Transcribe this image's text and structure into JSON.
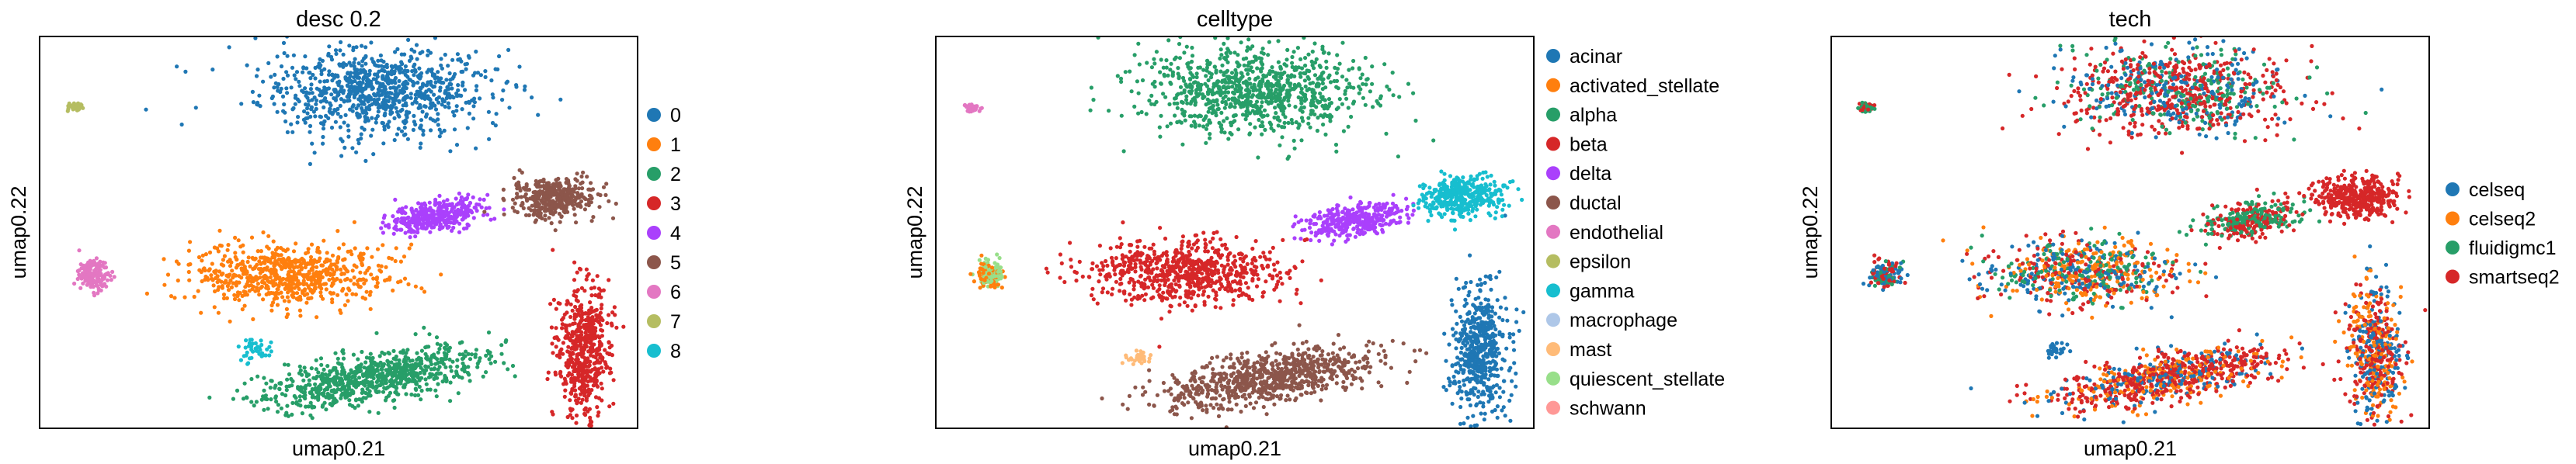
{
  "chart_data": [
    {
      "type": "scatter",
      "title": "desc 0.2",
      "xlabel": "umap0.21",
      "ylabel": "umap0.22",
      "grid": false,
      "legend_position": "right",
      "legend": [
        {
          "label": "0",
          "color": "#1f77b4"
        },
        {
          "label": "1",
          "color": "#ff7f0e"
        },
        {
          "label": "2",
          "color": "#279e68"
        },
        {
          "label": "3",
          "color": "#d62728"
        },
        {
          "label": "4",
          "color": "#aa40fc"
        },
        {
          "label": "5",
          "color": "#8c564b"
        },
        {
          "label": "6",
          "color": "#e377c2"
        },
        {
          "label": "7",
          "color": "#b5bd61"
        },
        {
          "label": "8",
          "color": "#17becf"
        }
      ],
      "clusters": [
        {
          "x": 0.56,
          "y": 0.86,
          "sx": 0.095,
          "sy": 0.055,
          "n": 900,
          "colors": [
            "#1f77b4"
          ]
        },
        {
          "x": 0.42,
          "y": 0.39,
          "sx": 0.08,
          "sy": 0.04,
          "n": 700,
          "colors": [
            "#ff7f0e"
          ]
        },
        {
          "x": 0.56,
          "y": 0.13,
          "sx": 0.095,
          "sy": 0.03,
          "n": 800,
          "colors": [
            "#279e68"
          ],
          "rot": 0.28
        },
        {
          "x": 0.91,
          "y": 0.2,
          "sx": 0.022,
          "sy": 0.08,
          "n": 550,
          "colors": [
            "#d62728"
          ]
        },
        {
          "x": 0.66,
          "y": 0.54,
          "sx": 0.04,
          "sy": 0.02,
          "n": 350,
          "colors": [
            "#aa40fc"
          ],
          "rot": 0.3
        },
        {
          "x": 0.86,
          "y": 0.59,
          "sx": 0.035,
          "sy": 0.025,
          "n": 400,
          "colors": [
            "#8c564b"
          ]
        },
        {
          "x": 0.09,
          "y": 0.39,
          "sx": 0.012,
          "sy": 0.018,
          "n": 160,
          "colors": [
            "#e377c2"
          ]
        },
        {
          "x": 0.06,
          "y": 0.82,
          "sx": 0.006,
          "sy": 0.006,
          "n": 45,
          "colors": [
            "#b5bd61"
          ]
        },
        {
          "x": 0.36,
          "y": 0.2,
          "sx": 0.014,
          "sy": 0.014,
          "n": 40,
          "colors": [
            "#17becf"
          ]
        }
      ]
    },
    {
      "type": "scatter",
      "title": "celltype",
      "xlabel": "umap0.21",
      "ylabel": "umap0.22",
      "grid": false,
      "legend_position": "right",
      "legend": [
        {
          "label": "acinar",
          "color": "#1f77b4"
        },
        {
          "label": "activated_stellate",
          "color": "#ff7f0e"
        },
        {
          "label": "alpha",
          "color": "#279e68"
        },
        {
          "label": "beta",
          "color": "#d62728"
        },
        {
          "label": "delta",
          "color": "#aa40fc"
        },
        {
          "label": "ductal",
          "color": "#8c564b"
        },
        {
          "label": "endothelial",
          "color": "#e377c2"
        },
        {
          "label": "epsilon",
          "color": "#b5bd61"
        },
        {
          "label": "gamma",
          "color": "#17becf"
        },
        {
          "label": "macrophage",
          "color": "#aec7e8"
        },
        {
          "label": "mast",
          "color": "#ffbb78"
        },
        {
          "label": "quiescent_stellate",
          "color": "#98df8a"
        },
        {
          "label": "schwann",
          "color": "#ff9896"
        }
      ],
      "clusters": [
        {
          "x": 0.53,
          "y": 0.86,
          "sx": 0.095,
          "sy": 0.055,
          "n": 900,
          "colors": [
            "#279e68"
          ]
        },
        {
          "x": 0.42,
          "y": 0.4,
          "sx": 0.08,
          "sy": 0.04,
          "n": 700,
          "colors": [
            "#d62728"
          ]
        },
        {
          "x": 0.56,
          "y": 0.13,
          "sx": 0.095,
          "sy": 0.03,
          "n": 800,
          "colors": [
            "#8c564b"
          ],
          "rot": 0.28
        },
        {
          "x": 0.91,
          "y": 0.2,
          "sx": 0.022,
          "sy": 0.08,
          "n": 550,
          "colors": [
            "#1f77b4"
          ]
        },
        {
          "x": 0.7,
          "y": 0.53,
          "sx": 0.04,
          "sy": 0.02,
          "n": 350,
          "colors": [
            "#aa40fc"
          ],
          "rot": 0.3
        },
        {
          "x": 0.88,
          "y": 0.59,
          "sx": 0.035,
          "sy": 0.025,
          "n": 400,
          "colors": [
            "#17becf"
          ]
        },
        {
          "x": 0.06,
          "y": 0.82,
          "sx": 0.006,
          "sy": 0.006,
          "n": 45,
          "colors": [
            "#e377c2"
          ]
        },
        {
          "x": 0.09,
          "y": 0.39,
          "sx": 0.012,
          "sy": 0.018,
          "n": 160,
          "colors": [
            "#ff7f0e",
            "#98df8a"
          ]
        },
        {
          "x": 0.34,
          "y": 0.18,
          "sx": 0.01,
          "sy": 0.01,
          "n": 30,
          "colors": [
            "#ffbb78"
          ]
        }
      ]
    },
    {
      "type": "scatter",
      "title": "tech",
      "xlabel": "umap0.21",
      "ylabel": "umap0.22",
      "grid": false,
      "legend_position": "right",
      "legend": [
        {
          "label": "celseq",
          "color": "#1f77b4"
        },
        {
          "label": "celseq2",
          "color": "#ff7f0e"
        },
        {
          "label": "fluidigmc1",
          "color": "#279e68"
        },
        {
          "label": "smartseq2",
          "color": "#d62728"
        }
      ],
      "clusters": [
        {
          "x": 0.58,
          "y": 0.86,
          "sx": 0.095,
          "sy": 0.055,
          "n": 900,
          "colors": [
            "#d62728",
            "#d62728",
            "#279e68",
            "#1f77b4"
          ]
        },
        {
          "x": 0.42,
          "y": 0.4,
          "sx": 0.08,
          "sy": 0.04,
          "n": 700,
          "colors": [
            "#d62728",
            "#279e68",
            "#1f77b4",
            "#ff7f0e"
          ]
        },
        {
          "x": 0.56,
          "y": 0.13,
          "sx": 0.095,
          "sy": 0.03,
          "n": 800,
          "colors": [
            "#d62728",
            "#d62728",
            "#1f77b4",
            "#ff7f0e"
          ],
          "rot": 0.28
        },
        {
          "x": 0.91,
          "y": 0.2,
          "sx": 0.022,
          "sy": 0.08,
          "n": 550,
          "colors": [
            "#d62728",
            "#1f77b4",
            "#ff7f0e"
          ]
        },
        {
          "x": 0.7,
          "y": 0.53,
          "sx": 0.04,
          "sy": 0.02,
          "n": 350,
          "colors": [
            "#d62728",
            "#279e68"
          ],
          "rot": 0.3
        },
        {
          "x": 0.88,
          "y": 0.59,
          "sx": 0.035,
          "sy": 0.025,
          "n": 400,
          "colors": [
            "#d62728"
          ]
        },
        {
          "x": 0.06,
          "y": 0.82,
          "sx": 0.006,
          "sy": 0.006,
          "n": 45,
          "colors": [
            "#d62728",
            "#279e68"
          ]
        },
        {
          "x": 0.09,
          "y": 0.39,
          "sx": 0.012,
          "sy": 0.018,
          "n": 160,
          "colors": [
            "#d62728",
            "#279e68",
            "#1f77b4"
          ]
        },
        {
          "x": 0.38,
          "y": 0.2,
          "sx": 0.01,
          "sy": 0.01,
          "n": 30,
          "colors": [
            "#1f77b4"
          ]
        }
      ]
    }
  ]
}
